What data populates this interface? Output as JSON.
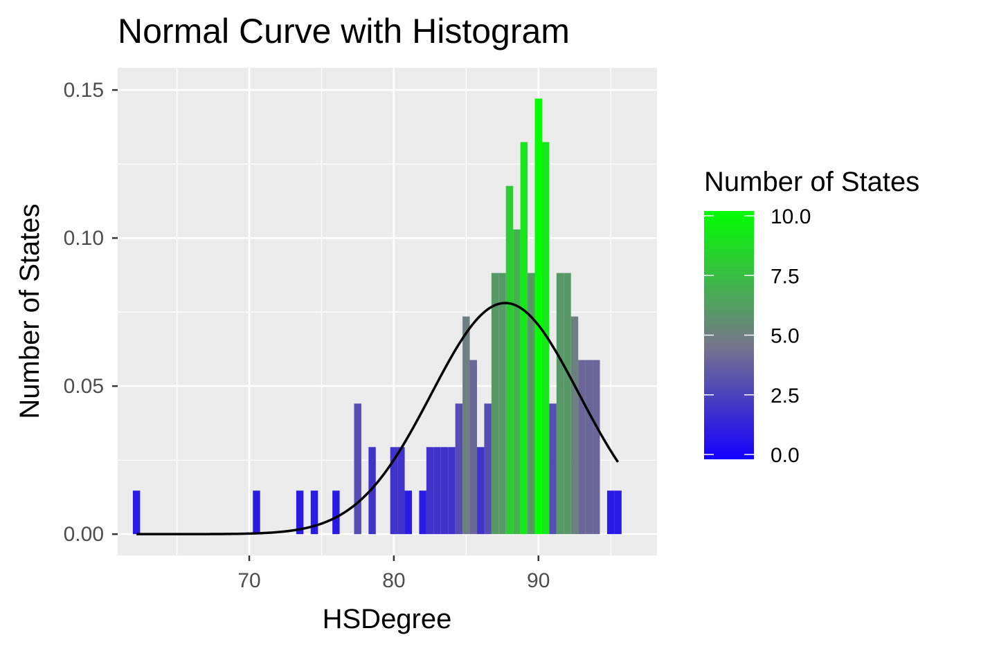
{
  "chart_data": {
    "type": "bar",
    "title": "Normal Curve with Histogram",
    "xlabel": "HSDegree",
    "ylabel": "Number of States",
    "xlim": [
      60.9,
      98.2
    ],
    "ylim": [
      -0.0072,
      0.1575
    ],
    "x_ticks": [
      70,
      80,
      90
    ],
    "x_tick_labels": [
      "70",
      "80",
      "90"
    ],
    "y_ticks": [
      0.0,
      0.05,
      0.1,
      0.15
    ],
    "y_tick_labels": [
      "0.00",
      "0.05",
      "0.10",
      "0.15"
    ],
    "grid": true,
    "bin_width": 0.5,
    "bars": [
      {
        "x": 62.2,
        "density": 0.0147,
        "count": 1
      },
      {
        "x": 70.5,
        "density": 0.0147,
        "count": 1
      },
      {
        "x": 73.5,
        "density": 0.0147,
        "count": 1
      },
      {
        "x": 74.5,
        "density": 0.0147,
        "count": 1
      },
      {
        "x": 76.0,
        "density": 0.0147,
        "count": 1
      },
      {
        "x": 77.5,
        "density": 0.0441,
        "count": 3
      },
      {
        "x": 78.5,
        "density": 0.0294,
        "count": 2
      },
      {
        "x": 80.0,
        "density": 0.0294,
        "count": 2
      },
      {
        "x": 80.5,
        "density": 0.0294,
        "count": 2
      },
      {
        "x": 81.0,
        "density": 0.0147,
        "count": 1
      },
      {
        "x": 82.0,
        "density": 0.0147,
        "count": 1
      },
      {
        "x": 82.5,
        "density": 0.0294,
        "count": 2
      },
      {
        "x": 83.0,
        "density": 0.0294,
        "count": 2
      },
      {
        "x": 83.5,
        "density": 0.0294,
        "count": 2
      },
      {
        "x": 84.0,
        "density": 0.0294,
        "count": 2
      },
      {
        "x": 84.5,
        "density": 0.0441,
        "count": 3
      },
      {
        "x": 85.0,
        "density": 0.0735,
        "count": 5
      },
      {
        "x": 85.5,
        "density": 0.0588,
        "count": 4
      },
      {
        "x": 86.0,
        "density": 0.0294,
        "count": 2
      },
      {
        "x": 86.5,
        "density": 0.0441,
        "count": 3
      },
      {
        "x": 87.0,
        "density": 0.0882,
        "count": 6
      },
      {
        "x": 87.5,
        "density": 0.0882,
        "count": 6
      },
      {
        "x": 88.0,
        "density": 0.1176,
        "count": 8
      },
      {
        "x": 88.5,
        "density": 0.1029,
        "count": 7
      },
      {
        "x": 89.0,
        "density": 0.1324,
        "count": 9
      },
      {
        "x": 89.5,
        "density": 0.0882,
        "count": 6
      },
      {
        "x": 90.0,
        "density": 0.1471,
        "count": 10
      },
      {
        "x": 90.5,
        "density": 0.1324,
        "count": 9
      },
      {
        "x": 91.0,
        "density": 0.0441,
        "count": 3
      },
      {
        "x": 91.5,
        "density": 0.0882,
        "count": 6
      },
      {
        "x": 92.0,
        "density": 0.0882,
        "count": 6
      },
      {
        "x": 92.5,
        "density": 0.0735,
        "count": 5
      },
      {
        "x": 93.0,
        "density": 0.0588,
        "count": 4
      },
      {
        "x": 93.5,
        "density": 0.0588,
        "count": 4
      },
      {
        "x": 94.0,
        "density": 0.0588,
        "count": 4
      },
      {
        "x": 95.0,
        "density": 0.0147,
        "count": 1
      },
      {
        "x": 95.5,
        "density": 0.0147,
        "count": 1
      }
    ],
    "normal_curve": {
      "mean": 87.7,
      "sd": 5.11,
      "x_range": [
        62.2,
        95.5
      ],
      "color": "#000000"
    },
    "legend": {
      "title": "Number of States",
      "placement": "right",
      "min": 0,
      "max": 10,
      "low_color": "#0000ff",
      "high_color": "#00ff00",
      "ticks": [
        0,
        2.5,
        5,
        7.5,
        10
      ],
      "tick_labels": [
        "0.0",
        "2.5",
        "5.0",
        "7.5",
        "10.0"
      ]
    }
  }
}
